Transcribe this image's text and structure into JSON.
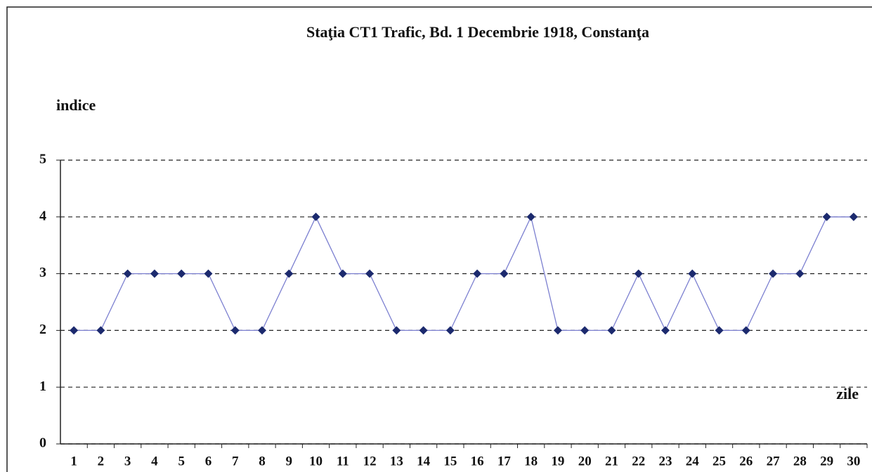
{
  "chart_data": {
    "type": "line",
    "title": "Staţia CT1 Trafic, Bd. 1 Decembrie 1918, Constanţa",
    "y_label": "indice",
    "x_label": "zile",
    "categories": [
      "1",
      "2",
      "3",
      "4",
      "5",
      "6",
      "7",
      "8",
      "9",
      "10",
      "11",
      "12",
      "13",
      "14",
      "15",
      "16",
      "17",
      "18",
      "19",
      "20",
      "21",
      "22",
      "23",
      "24",
      "25",
      "26",
      "27",
      "28",
      "29",
      "30"
    ],
    "series": [
      {
        "name": "indice",
        "color": "#7b7fd0",
        "marker_color": "#1c2a6e",
        "values": [
          2,
          2,
          3,
          3,
          3,
          3,
          2,
          2,
          3,
          4,
          3,
          3,
          2,
          2,
          2,
          3,
          3,
          4,
          2,
          2,
          2,
          3,
          2,
          3,
          2,
          2,
          3,
          3,
          4,
          4
        ]
      }
    ],
    "ylim": [
      0,
      5
    ],
    "yticks": [
      0,
      1,
      2,
      3,
      4,
      5
    ],
    "grid": true
  }
}
